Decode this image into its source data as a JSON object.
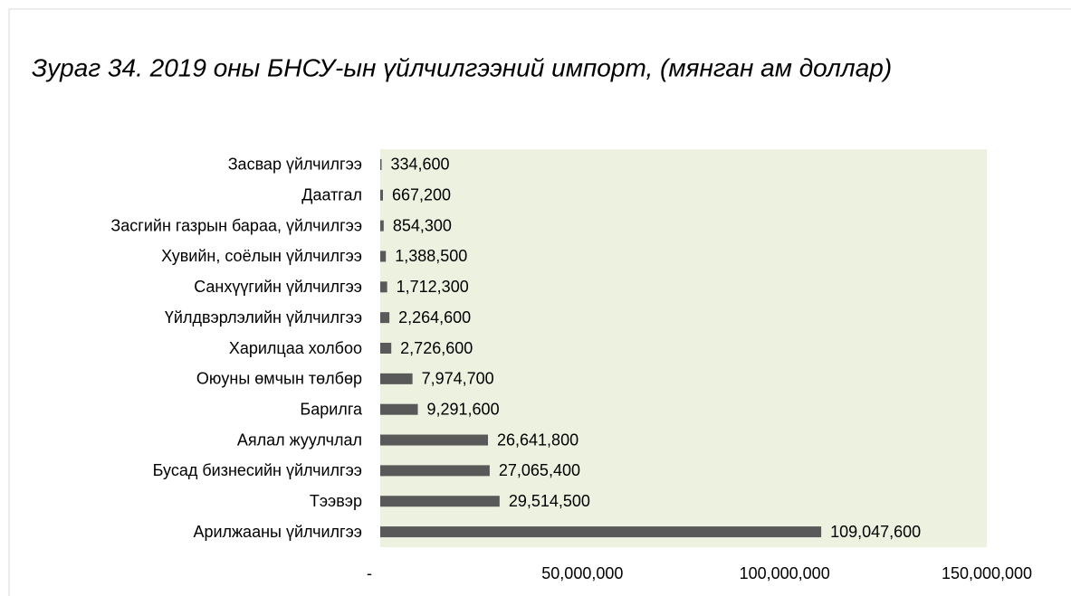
{
  "chart_data": {
    "type": "barh",
    "title": "Зураг 34. 2019 оны БНСУ-ын үйлчилгээний импорт, (мянган ам доллар)",
    "categories": [
      "Засвар үйлчилгээ",
      "Даатгал",
      "Засгийн газрын бараа, үйлчилгээ",
      "Хувийн, соёлын үйлчилгээ",
      "Санхүүгийн үйлчилгээ",
      "Үйлдвэрлэлийн үйлчилгээ",
      "Харилцаа холбоо",
      "Оюуны өмчын төлбөр",
      "Барилга",
      "Аялал жуулчлал",
      "Бусад бизнесийн үйлчилгээ",
      "Тээвэр",
      "Арилжааны үйлчилгээ"
    ],
    "values": [
      334600,
      667200,
      854300,
      1388500,
      1712300,
      2264600,
      2726600,
      7974700,
      9291600,
      26641800,
      27065400,
      29514500,
      109047600
    ],
    "value_labels": [
      "334,600",
      "667,200",
      "854,300",
      "1,388,500",
      "1,712,300",
      "2,264,600",
      "2,726,600",
      "7,974,700",
      "9,291,600",
      "26,641,800",
      "27,065,400",
      "29,514,500",
      "109,047,600"
    ],
    "color": "#595959",
    "xlim": [
      0,
      150000000
    ],
    "xticks": [
      {
        "value": 0,
        "label": "-"
      },
      {
        "value": 50000000,
        "label": "50,000,000"
      },
      {
        "value": 100000000,
        "label": "100,000,000"
      },
      {
        "value": 150000000,
        "label": "150,000,000"
      }
    ]
  }
}
